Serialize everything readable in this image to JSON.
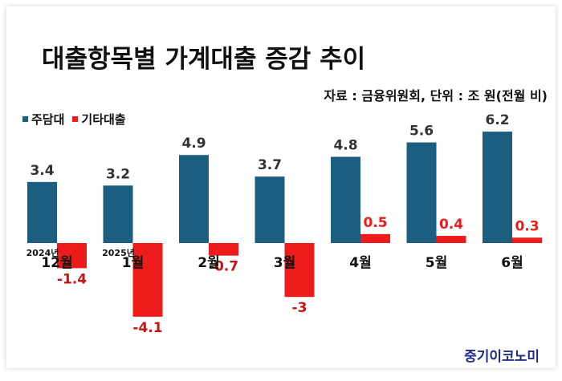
{
  "title": "대출항목별 가계대출 증감 추이",
  "source": "자료 : 금융위원회, 단위 : 조 원(전월 비)",
  "brand": "중기이코노미",
  "colors": {
    "series1": "#1b5e80",
    "series2": "#ee1b1b",
    "text": "#333333"
  },
  "chart_data": {
    "type": "bar",
    "title": "대출항목별 가계대출 증감 추이",
    "categories": [
      "12월",
      "1월",
      "2월",
      "3월",
      "4월",
      "5월",
      "6월"
    ],
    "year_labels": [
      "2024년",
      "2025년",
      "",
      "",
      "",
      "",
      ""
    ],
    "series": [
      {
        "name": "주담대",
        "values": [
          3.4,
          3.2,
          4.9,
          3.7,
          4.8,
          5.6,
          6.2
        ]
      },
      {
        "name": "기타대출",
        "values": [
          -1.4,
          -4.1,
          -0.7,
          -3,
          0.5,
          0.4,
          0.3
        ]
      }
    ],
    "value_labels": [
      [
        "3.4",
        "3.2",
        "4.9",
        "3.7",
        "4.8",
        "5.6",
        "6.2"
      ],
      [
        "-1.4",
        "-4.1",
        "-0.7",
        "-3",
        "0.5",
        "0.4",
        "0.3"
      ]
    ],
    "ylim": [
      -4.5,
      6.6
    ],
    "unit": "조 원",
    "grid": false,
    "legend": "top-left"
  }
}
